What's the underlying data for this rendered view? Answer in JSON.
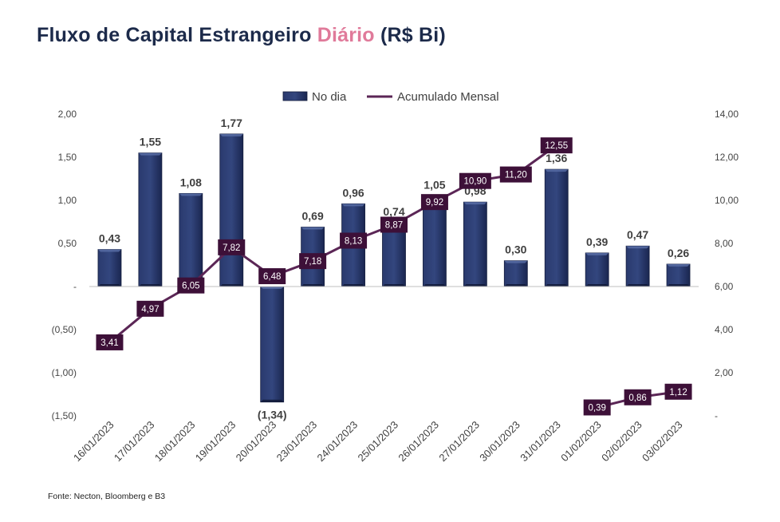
{
  "title": {
    "prefix": "Fluxo de Capital Estrangeiro",
    "highlight": "Diário",
    "suffix": "(R$ Bi)"
  },
  "source": "Fonte: Necton, Bloomberg e B3",
  "colors": {
    "bar": "#1f2d5a",
    "bar_highlight": "#3b4f86",
    "line": "#5b2656",
    "label_box": "#3d1038",
    "highlight_text": "#e07a9a"
  },
  "chart_data": {
    "type": "bar",
    "categories": [
      "16/01/2023",
      "17/01/2023",
      "18/01/2023",
      "19/01/2023",
      "20/01/2023",
      "23/01/2023",
      "24/01/2023",
      "25/01/2023",
      "26/01/2023",
      "27/01/2023",
      "30/01/2023",
      "31/01/2023",
      "01/02/2023",
      "02/02/2023",
      "03/02/2023"
    ],
    "series": [
      {
        "name": "No dia",
        "type": "bar",
        "axis": "left",
        "values": [
          0.43,
          1.55,
          1.08,
          1.77,
          -1.34,
          0.69,
          0.96,
          0.74,
          1.05,
          0.98,
          0.3,
          1.36,
          0.39,
          0.47,
          0.26
        ],
        "labels": [
          "0,43",
          "1,55",
          "1,08",
          "1,77",
          "(1,34)",
          "0,69",
          "0,96",
          "0,74",
          "1,05",
          "0,98",
          "0,30",
          "1,36",
          "0,39",
          "0,47",
          "0,26"
        ]
      },
      {
        "name": "Acumulado Mensal",
        "type": "line",
        "axis": "right",
        "values": [
          3.41,
          4.97,
          6.05,
          7.82,
          6.48,
          7.18,
          8.13,
          8.87,
          9.92,
          10.9,
          11.2,
          12.55,
          0.39,
          0.86,
          1.12
        ],
        "labels": [
          "3,41",
          "4,97",
          "6,05",
          "7,82",
          "6,48",
          "7,18",
          "8,13",
          "8,87",
          "9,92",
          "10,90",
          "11,20",
          "12,55",
          "0,39",
          "0,86",
          "1,12"
        ],
        "segments": [
          [
            0,
            11
          ],
          [
            12,
            14
          ]
        ]
      }
    ],
    "left_axis": {
      "ylim": [
        -1.5,
        2.0
      ],
      "ticks": [
        2.0,
        1.5,
        1.0,
        0.5,
        0,
        -0.5,
        -1.0,
        -1.5
      ],
      "tick_labels": [
        "2,00",
        "1,50",
        "1,00",
        "0,50",
        "-",
        "(0,50)",
        "(1,00)",
        "(1,50)"
      ]
    },
    "right_axis": {
      "ylim": [
        0,
        14
      ],
      "ticks": [
        14,
        12,
        10,
        8,
        6,
        4,
        2,
        0
      ],
      "tick_labels": [
        "14,00",
        "12,00",
        "10,00",
        "8,00",
        "6,00",
        "4,00",
        "2,00",
        "-"
      ]
    },
    "legend": {
      "position": "top-center",
      "entries": [
        "No dia",
        "Acumulado Mensal"
      ]
    },
    "grid": false
  }
}
